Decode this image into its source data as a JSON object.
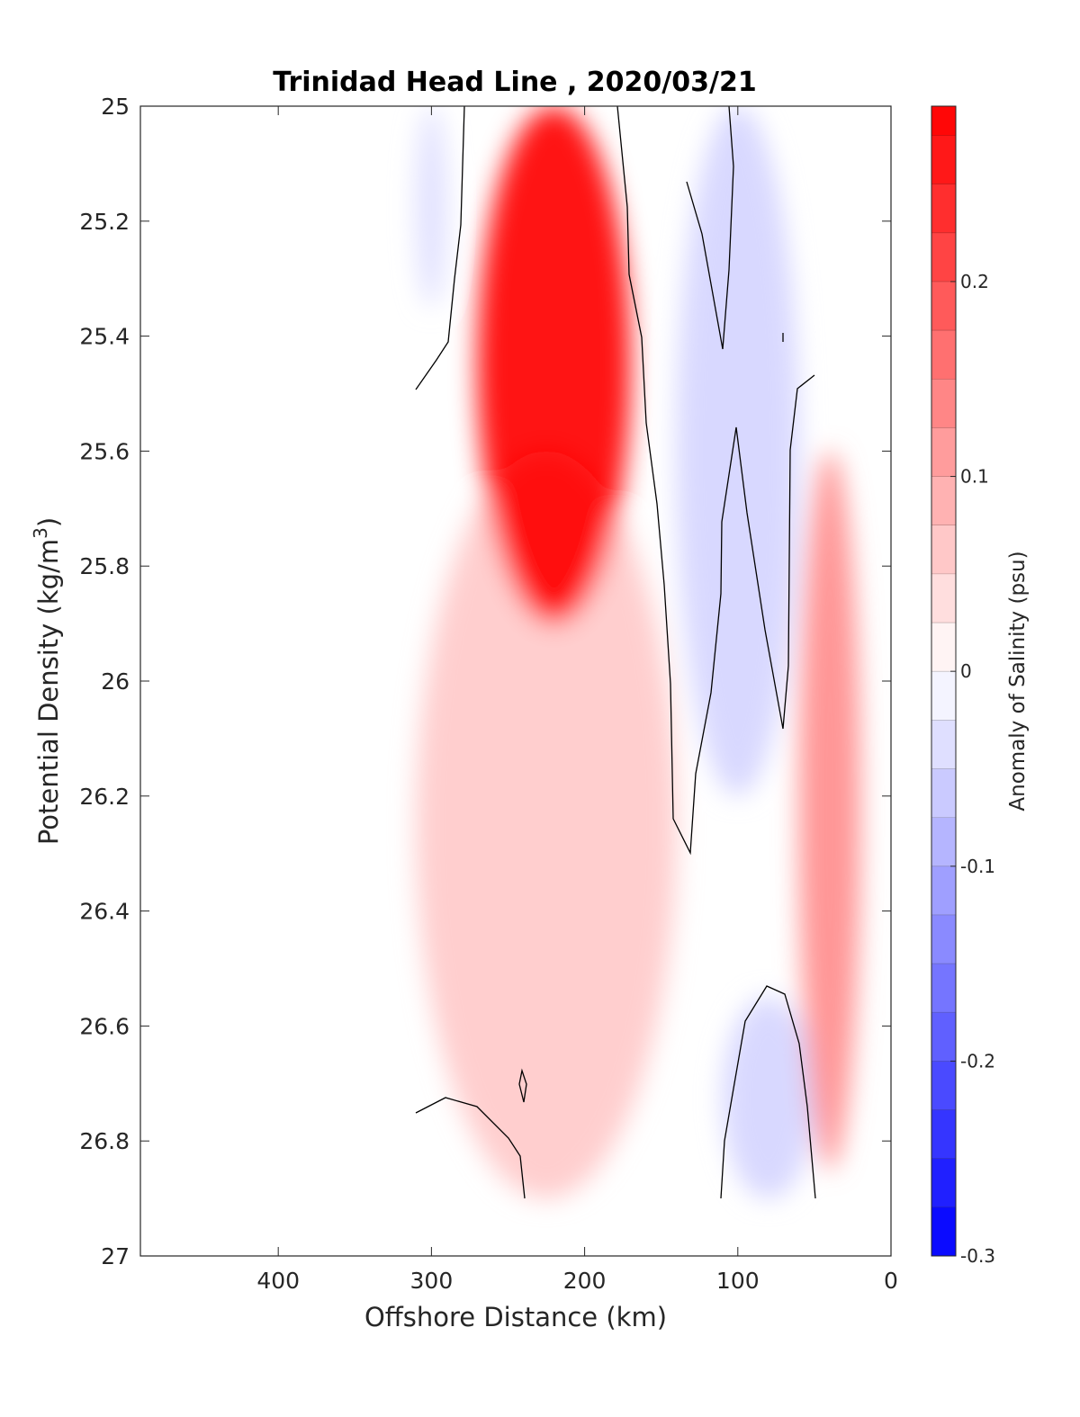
{
  "chart_data": {
    "type": "heatmap",
    "title": "Trinidad Head Line , 2020/03/21",
    "xlabel": "Offshore Distance (km)",
    "ylabel": "Potential Density (kg/m",
    "ylabel_sup": "3",
    "ylabel_close": ")",
    "xlim": [
      490,
      0
    ],
    "ylim": [
      25,
      27
    ],
    "y_reversed": true,
    "x_ticks": [
      "400",
      "300",
      "200",
      "100",
      "0"
    ],
    "x_tick_values": [
      400,
      300,
      200,
      100,
      0
    ],
    "y_ticks": [
      "25",
      "25.2",
      "25.4",
      "25.6",
      "25.8",
      "26",
      "26.2",
      "26.4",
      "26.6",
      "26.8",
      "27"
    ],
    "y_tick_values": [
      25,
      25.2,
      25.4,
      25.6,
      25.8,
      26,
      26.2,
      26.4,
      26.6,
      26.8,
      27
    ],
    "grid": false,
    "colorbar": {
      "label": "Anomaly of Salinity (psu)",
      "range": [
        -0.3,
        0.29
      ],
      "levels": [
        -0.3,
        -0.275,
        -0.25,
        -0.225,
        -0.2,
        -0.175,
        -0.15,
        -0.125,
        -0.1,
        -0.075,
        -0.05,
        -0.025,
        0,
        0.025,
        0.05,
        0.075,
        0.1,
        0.125,
        0.15,
        0.175,
        0.2,
        0.225,
        0.25,
        0.275
      ],
      "tick_labels": [
        "0.2",
        "0.1",
        "0",
        "-0.1",
        "-0.2",
        "-0.3"
      ],
      "tick_values": [
        0.2,
        0.1,
        0,
        -0.1,
        -0.2,
        -0.3
      ],
      "colors": {
        "negative": "#0000ff",
        "zero": "#ffffff",
        "positive": "#ff0000"
      }
    },
    "data_extent": {
      "x": [
        310,
        20
      ],
      "y": [
        25,
        26.9
      ]
    },
    "features": [
      {
        "name": "core salinity maximum",
        "anomaly": 0.29,
        "x": [
          270,
          170
        ],
        "y": [
          25,
          25.9
        ]
      },
      {
        "name": "negative anomaly offshore upper",
        "anomaly": -0.04,
        "x": [
          310,
          290
        ],
        "y": [
          25,
          25.35
        ]
      },
      {
        "name": "negative anomaly nearshore upper",
        "anomaly": -0.05,
        "x": [
          140,
          60
        ],
        "y": [
          25,
          26.2
        ]
      },
      {
        "name": "positive anomaly nearshore",
        "anomaly": 0.13,
        "x": [
          60,
          20
        ],
        "y": [
          25.6,
          26.85
        ]
      },
      {
        "name": "negative anomaly nearshore deep",
        "anomaly": -0.05,
        "x": [
          110,
          50
        ],
        "y": [
          26.55,
          26.9
        ]
      },
      {
        "name": "positive anomaly lower spread",
        "anomaly": 0.06,
        "x": [
          310,
          140
        ],
        "y": [
          25.6,
          26.9
        ]
      }
    ]
  }
}
